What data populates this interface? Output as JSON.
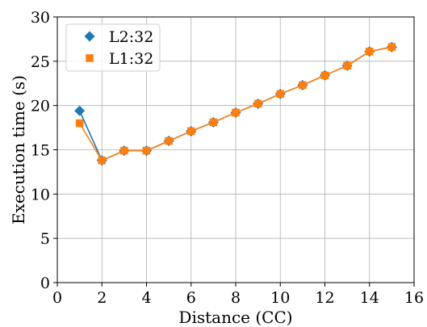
{
  "chart_data": {
    "type": "line",
    "title": "",
    "xlabel": "Distance (CC)",
    "ylabel": "Execution time (s)",
    "xlim": [
      0,
      16
    ],
    "ylim": [
      0,
      30
    ],
    "xticks": [
      0,
      2,
      4,
      6,
      8,
      10,
      12,
      14,
      16
    ],
    "yticks": [
      0,
      5,
      10,
      15,
      20,
      25,
      30
    ],
    "grid": true,
    "legend_position": "top-left",
    "series": [
      {
        "name": "L2:32",
        "color": "#1f77b4",
        "marker": "diamond",
        "x": [
          1,
          2,
          3,
          4,
          5,
          6,
          7,
          8,
          9,
          10,
          11,
          12,
          13,
          14,
          15
        ],
        "y": [
          19.4,
          13.8,
          14.9,
          14.9,
          16.0,
          17.1,
          18.1,
          19.2,
          20.2,
          21.3,
          22.3,
          23.4,
          24.5,
          26.1,
          26.6
        ]
      },
      {
        "name": "L1:32",
        "color": "#ff7f0e",
        "marker": "square",
        "x": [
          1,
          2,
          3,
          4,
          5,
          6,
          7,
          8,
          9,
          10,
          11,
          12,
          13,
          14,
          15
        ],
        "y": [
          18.0,
          13.8,
          14.9,
          14.9,
          16.0,
          17.1,
          18.1,
          19.2,
          20.2,
          21.3,
          22.3,
          23.4,
          24.5,
          26.1,
          26.6
        ]
      }
    ]
  }
}
